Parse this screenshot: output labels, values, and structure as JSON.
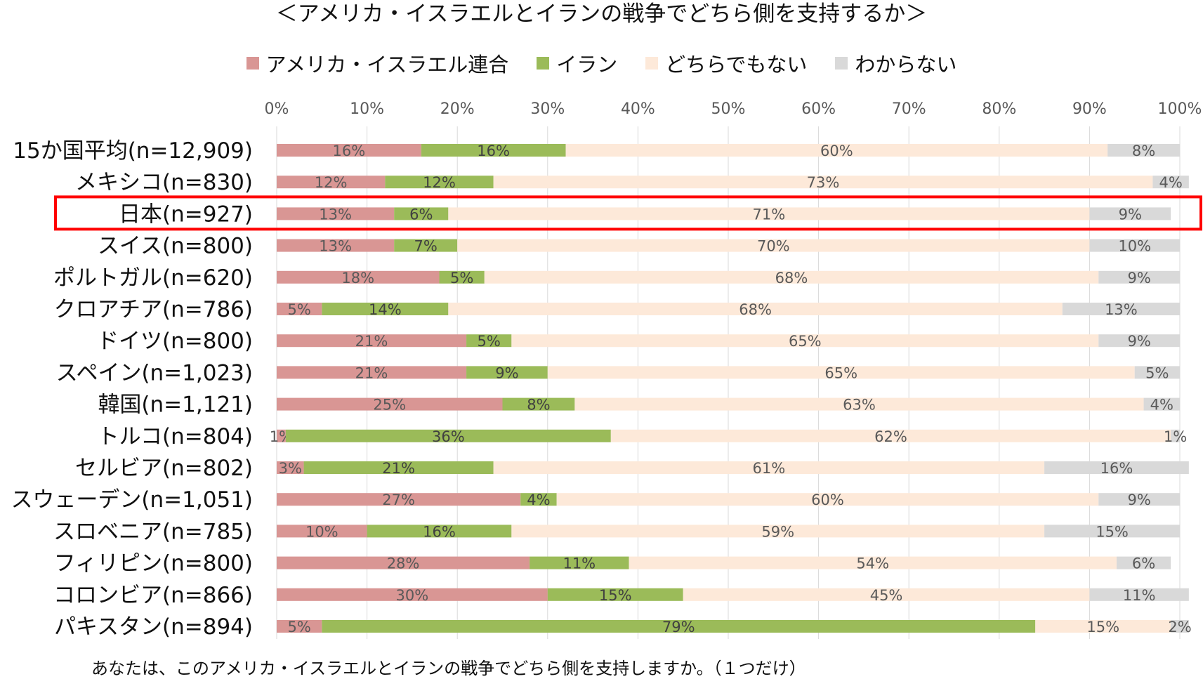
{
  "chart_data": {
    "type": "bar",
    "orientation": "horizontal",
    "stacked": true,
    "percent_stacked": true,
    "title": "＜アメリカ・イスラエルとイランの戦争でどちら側を支持するか＞",
    "xlim": [
      0,
      100
    ],
    "x_ticks": [
      "0%",
      "10%",
      "20%",
      "30%",
      "40%",
      "50%",
      "60%",
      "70%",
      "80%",
      "90%",
      "100%"
    ],
    "grid": true,
    "legend_position": "top",
    "categories": [
      "15か国平均(n=12,909)",
      "メキシコ(n=830)",
      "日本(n=927)",
      "スイス(n=800)",
      "ポルトガル(n=620)",
      "クロアチア(n=786)",
      "ドイツ(n=800)",
      "スペイン(n=1,023)",
      "韓国(n=1,121)",
      "トルコ(n=804)",
      "セルビア(n=802)",
      "スウェーデン(n=1,051)",
      "スロベニア(n=785)",
      "フィリピン(n=800)",
      "コロンビア(n=866)",
      "パキスタン(n=894)"
    ],
    "series": [
      {
        "name": "アメリカ・イスラエル連合",
        "color": "#d99694",
        "label_color": "#595959",
        "values": [
          16,
          12,
          13,
          13,
          18,
          5,
          21,
          21,
          25,
          1,
          3,
          27,
          10,
          28,
          30,
          5
        ]
      },
      {
        "name": "イラン",
        "color": "#9bbb59",
        "label_color": "#404040",
        "values": [
          16,
          12,
          6,
          7,
          5,
          14,
          5,
          9,
          8,
          36,
          21,
          4,
          16,
          11,
          15,
          79
        ]
      },
      {
        "name": "どちらでもない",
        "color": "#fde9d9",
        "label_color": "#595959",
        "values": [
          60,
          73,
          71,
          70,
          68,
          68,
          65,
          65,
          63,
          62,
          61,
          60,
          59,
          54,
          45,
          15
        ]
      },
      {
        "name": "わからない",
        "color": "#d9d9d9",
        "label_color": "#595959",
        "values": [
          8,
          4,
          9,
          10,
          9,
          13,
          9,
          5,
          4,
          1,
          16,
          9,
          15,
          6,
          11,
          2
        ]
      }
    ],
    "highlight_category": "日本(n=927)",
    "highlight_color": "#ff0000",
    "footnote": "あなたは、このアメリカ・イスラエルとイランの戦争でどちら側を支持しますか。（１つだけ）"
  }
}
